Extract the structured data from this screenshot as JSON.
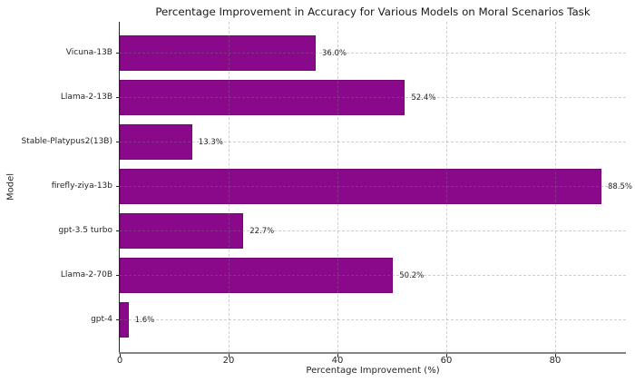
{
  "chart": {
    "title": "Percentage Improvement in Accuracy for Various Models on Moral Scenarios Task",
    "xlabel": "Percentage Improvement (%)",
    "ylabel": "Model"
  },
  "chart_data": {
    "type": "bar",
    "orientation": "horizontal",
    "title": "Percentage Improvement in Accuracy for Various Models on Moral Scenarios Task",
    "xlabel": "Percentage Improvement (%)",
    "ylabel": "Model",
    "categories": [
      "Vicuna-13B",
      "Llama-2-13B",
      "Stable-Platypus2(13B)",
      "firefly-ziya-13b",
      "gpt-3.5 turbo",
      "Llama-2-70B",
      "gpt-4"
    ],
    "values": [
      36.0,
      52.4,
      13.3,
      88.5,
      22.7,
      50.2,
      1.6
    ],
    "value_labels": [
      "36.0%",
      "52.4%",
      "13.3%",
      "88.5%",
      "22.7%",
      "50.2%",
      "1.6%"
    ],
    "xlim": [
      0,
      93
    ],
    "xticks": [
      0,
      20,
      40,
      60,
      80
    ],
    "grid": true,
    "grid_style": "dashed",
    "legend": "none",
    "bar_color": "#8a088a",
    "background_color": "#ffffff",
    "spine_left_color": "#262626",
    "spine_bottom_color": "#848484"
  }
}
